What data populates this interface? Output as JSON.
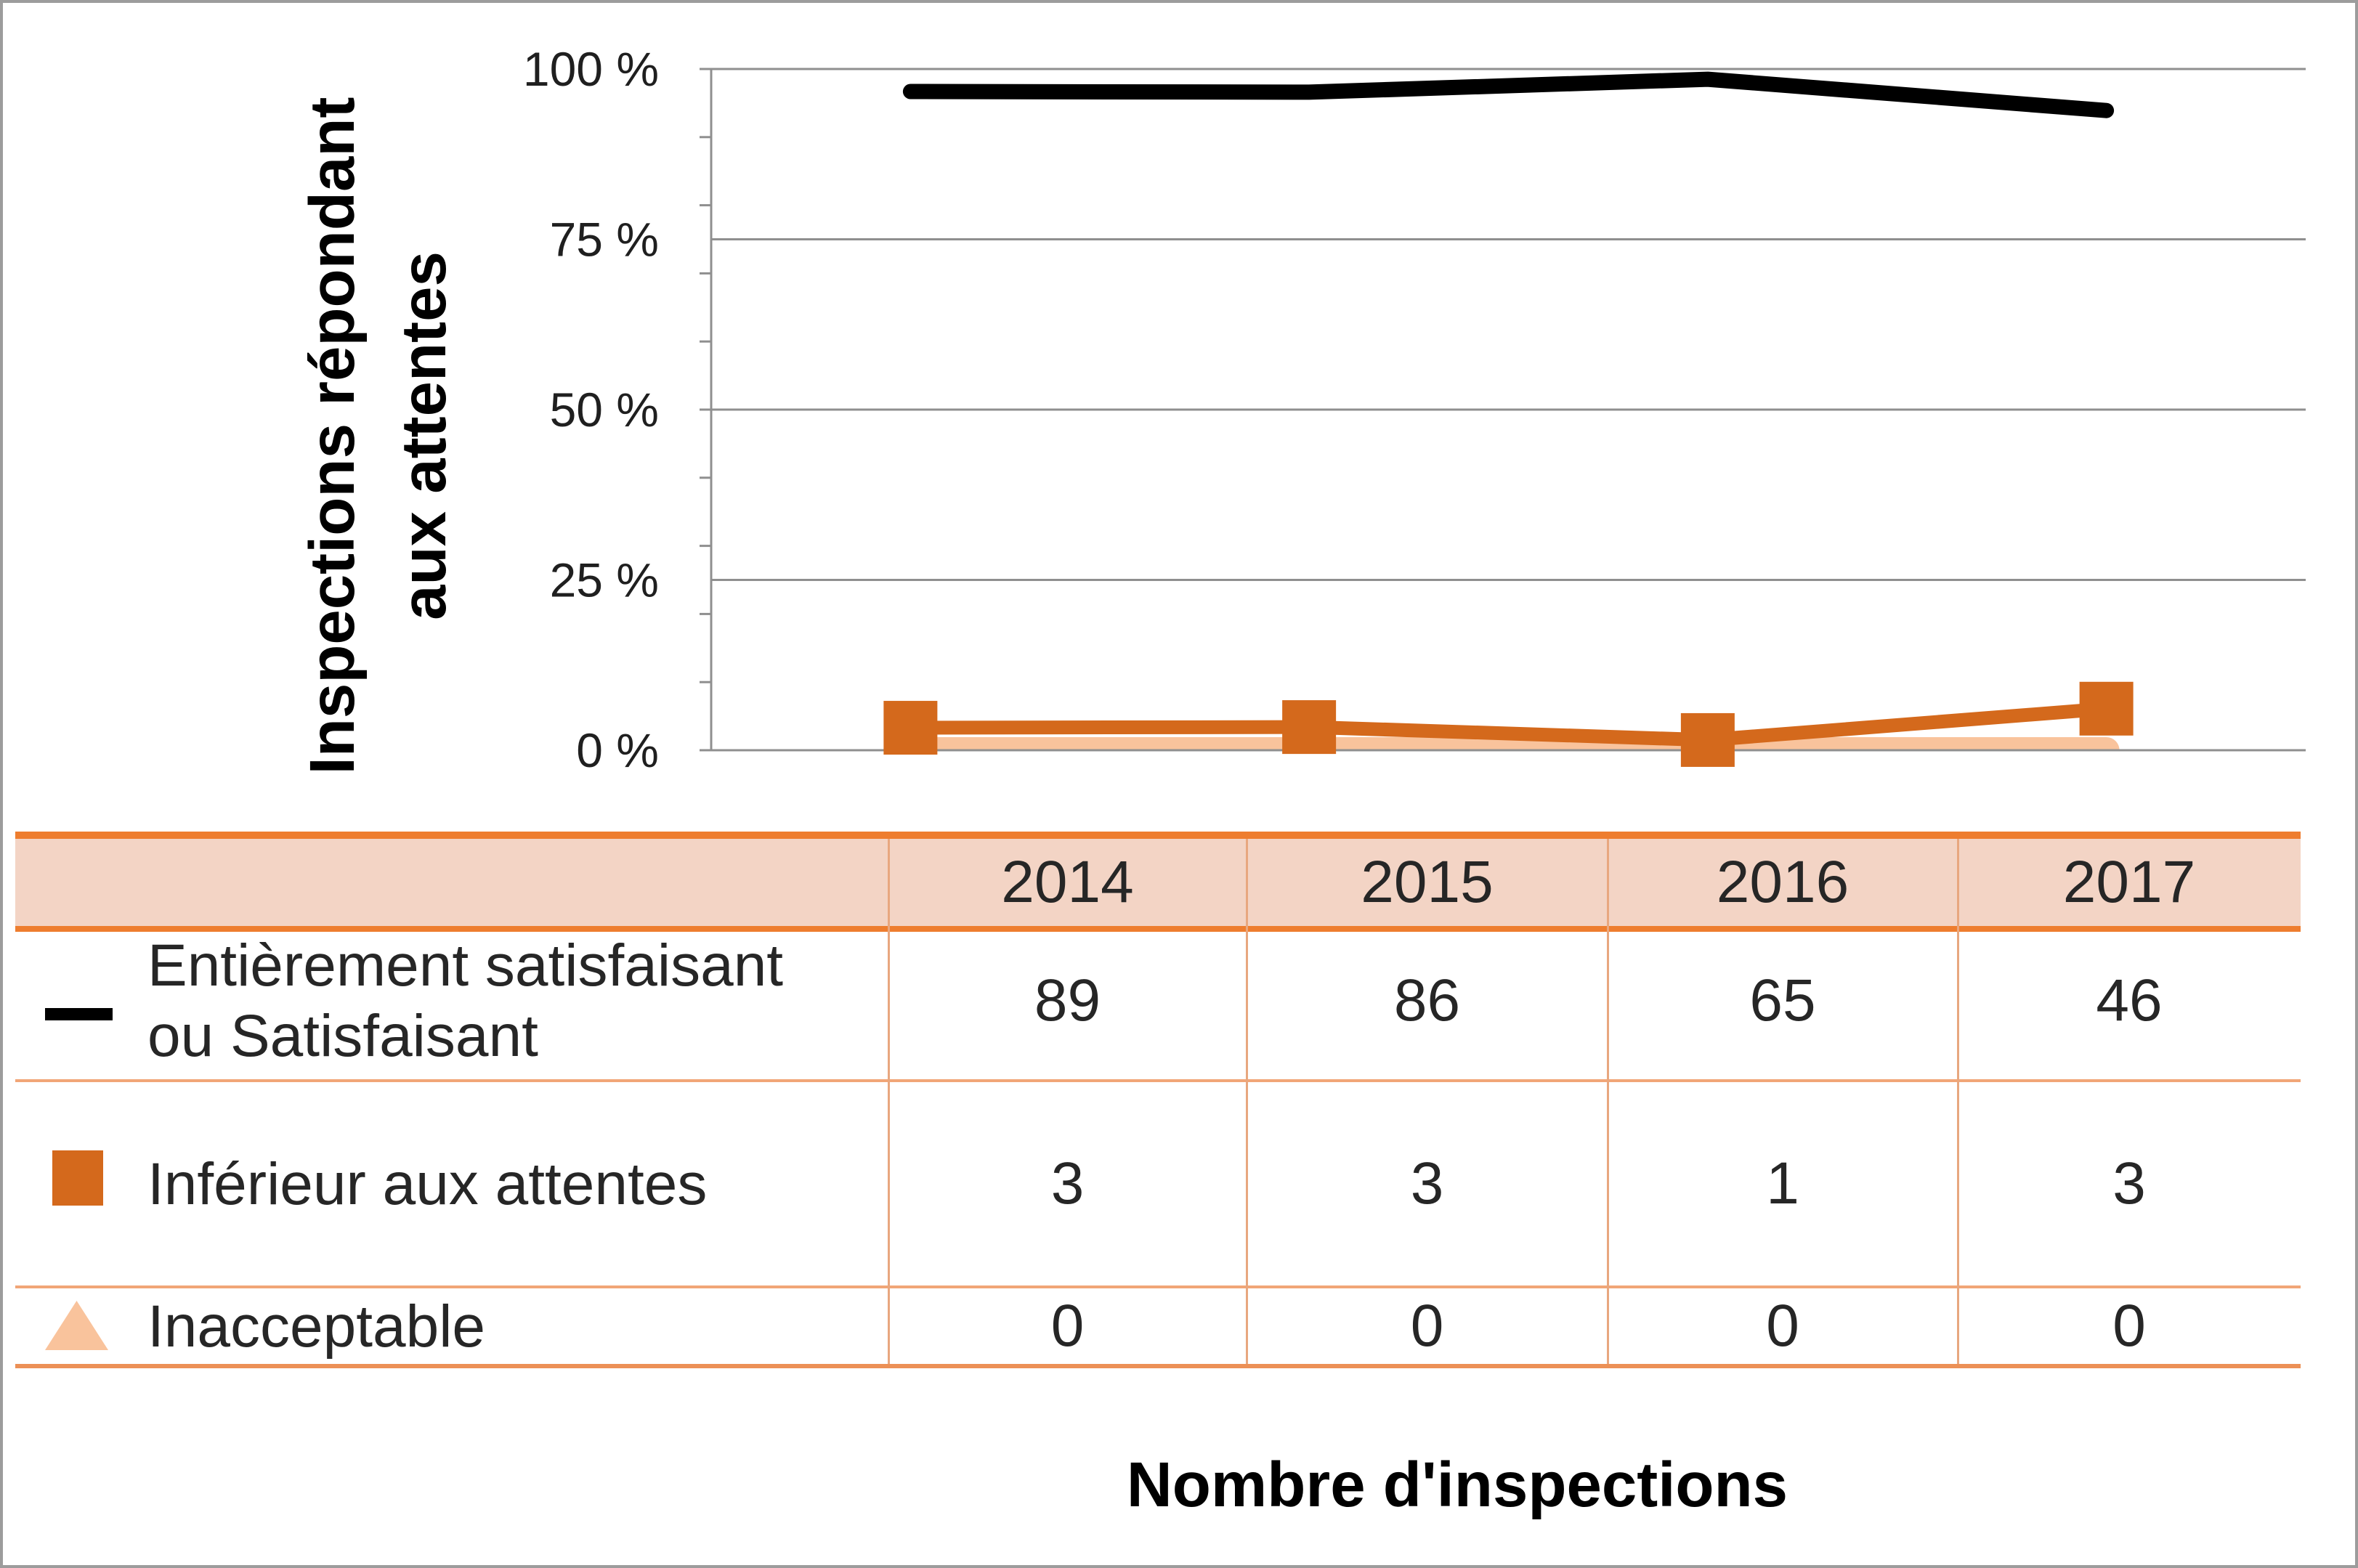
{
  "chart_data": {
    "type": "line",
    "categories": [
      "2014",
      "2015",
      "2016",
      "2017"
    ],
    "xlabel": "Nombre d'inspections",
    "ylabel": "Inspections répondant aux attentes",
    "ylim": [
      0,
      100
    ],
    "yticks": [
      {
        "value": 0,
        "label": "0 %"
      },
      {
        "value": 25,
        "label": "25 %"
      },
      {
        "value": 50,
        "label": "50 %"
      },
      {
        "value": 75,
        "label": "75 %"
      },
      {
        "value": 100,
        "label": "100 %"
      }
    ],
    "minor_tick_step": 10,
    "grid": true,
    "legend": "bottom",
    "series": [
      {
        "name": "Entièrement satisfaisant ou Satisfaisant",
        "color": "#000000",
        "marker": "line",
        "values": [
          96.7,
          96.6,
          98.5,
          93.9
        ],
        "counts": [
          89,
          86,
          65,
          46
        ]
      },
      {
        "name": "Inférieur aux attentes",
        "color": "#D4691C",
        "marker": "square",
        "values": [
          3.3,
          3.4,
          1.5,
          6.1
        ],
        "counts": [
          3,
          3,
          1,
          3
        ]
      },
      {
        "name": "Inacceptable",
        "color": "#F9C39C",
        "marker": "triangle",
        "values": [
          0,
          0,
          0,
          0
        ],
        "counts": [
          0,
          0,
          0,
          0
        ]
      }
    ]
  }
}
